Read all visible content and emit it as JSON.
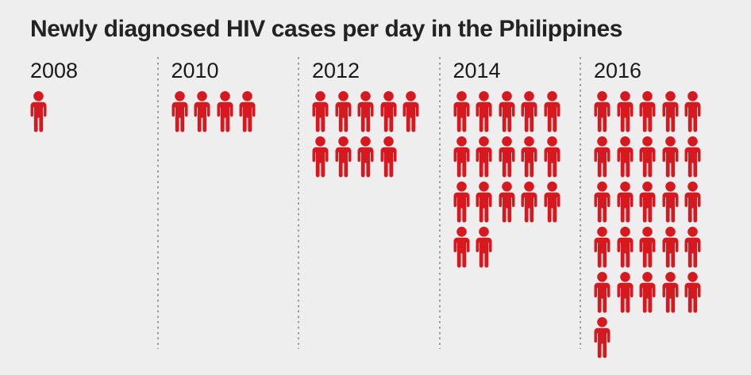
{
  "title": "Newly diagnosed HIV cases per day in the Philippines",
  "colors": {
    "background": "#eeeeee",
    "title": "#232323",
    "year_label": "#1a1a1a",
    "person": "#d7191f",
    "divider": "#9a9a9a"
  },
  "chart_data": {
    "type": "pictogram",
    "title": "Newly diagnosed HIV cases per day in the Philippines",
    "icon": "person",
    "icons_per_row": 5,
    "categories": [
      "2008",
      "2010",
      "2012",
      "2014",
      "2016"
    ],
    "values": [
      1,
      4,
      9,
      17,
      26
    ],
    "legend_position": "none",
    "grid": false
  }
}
